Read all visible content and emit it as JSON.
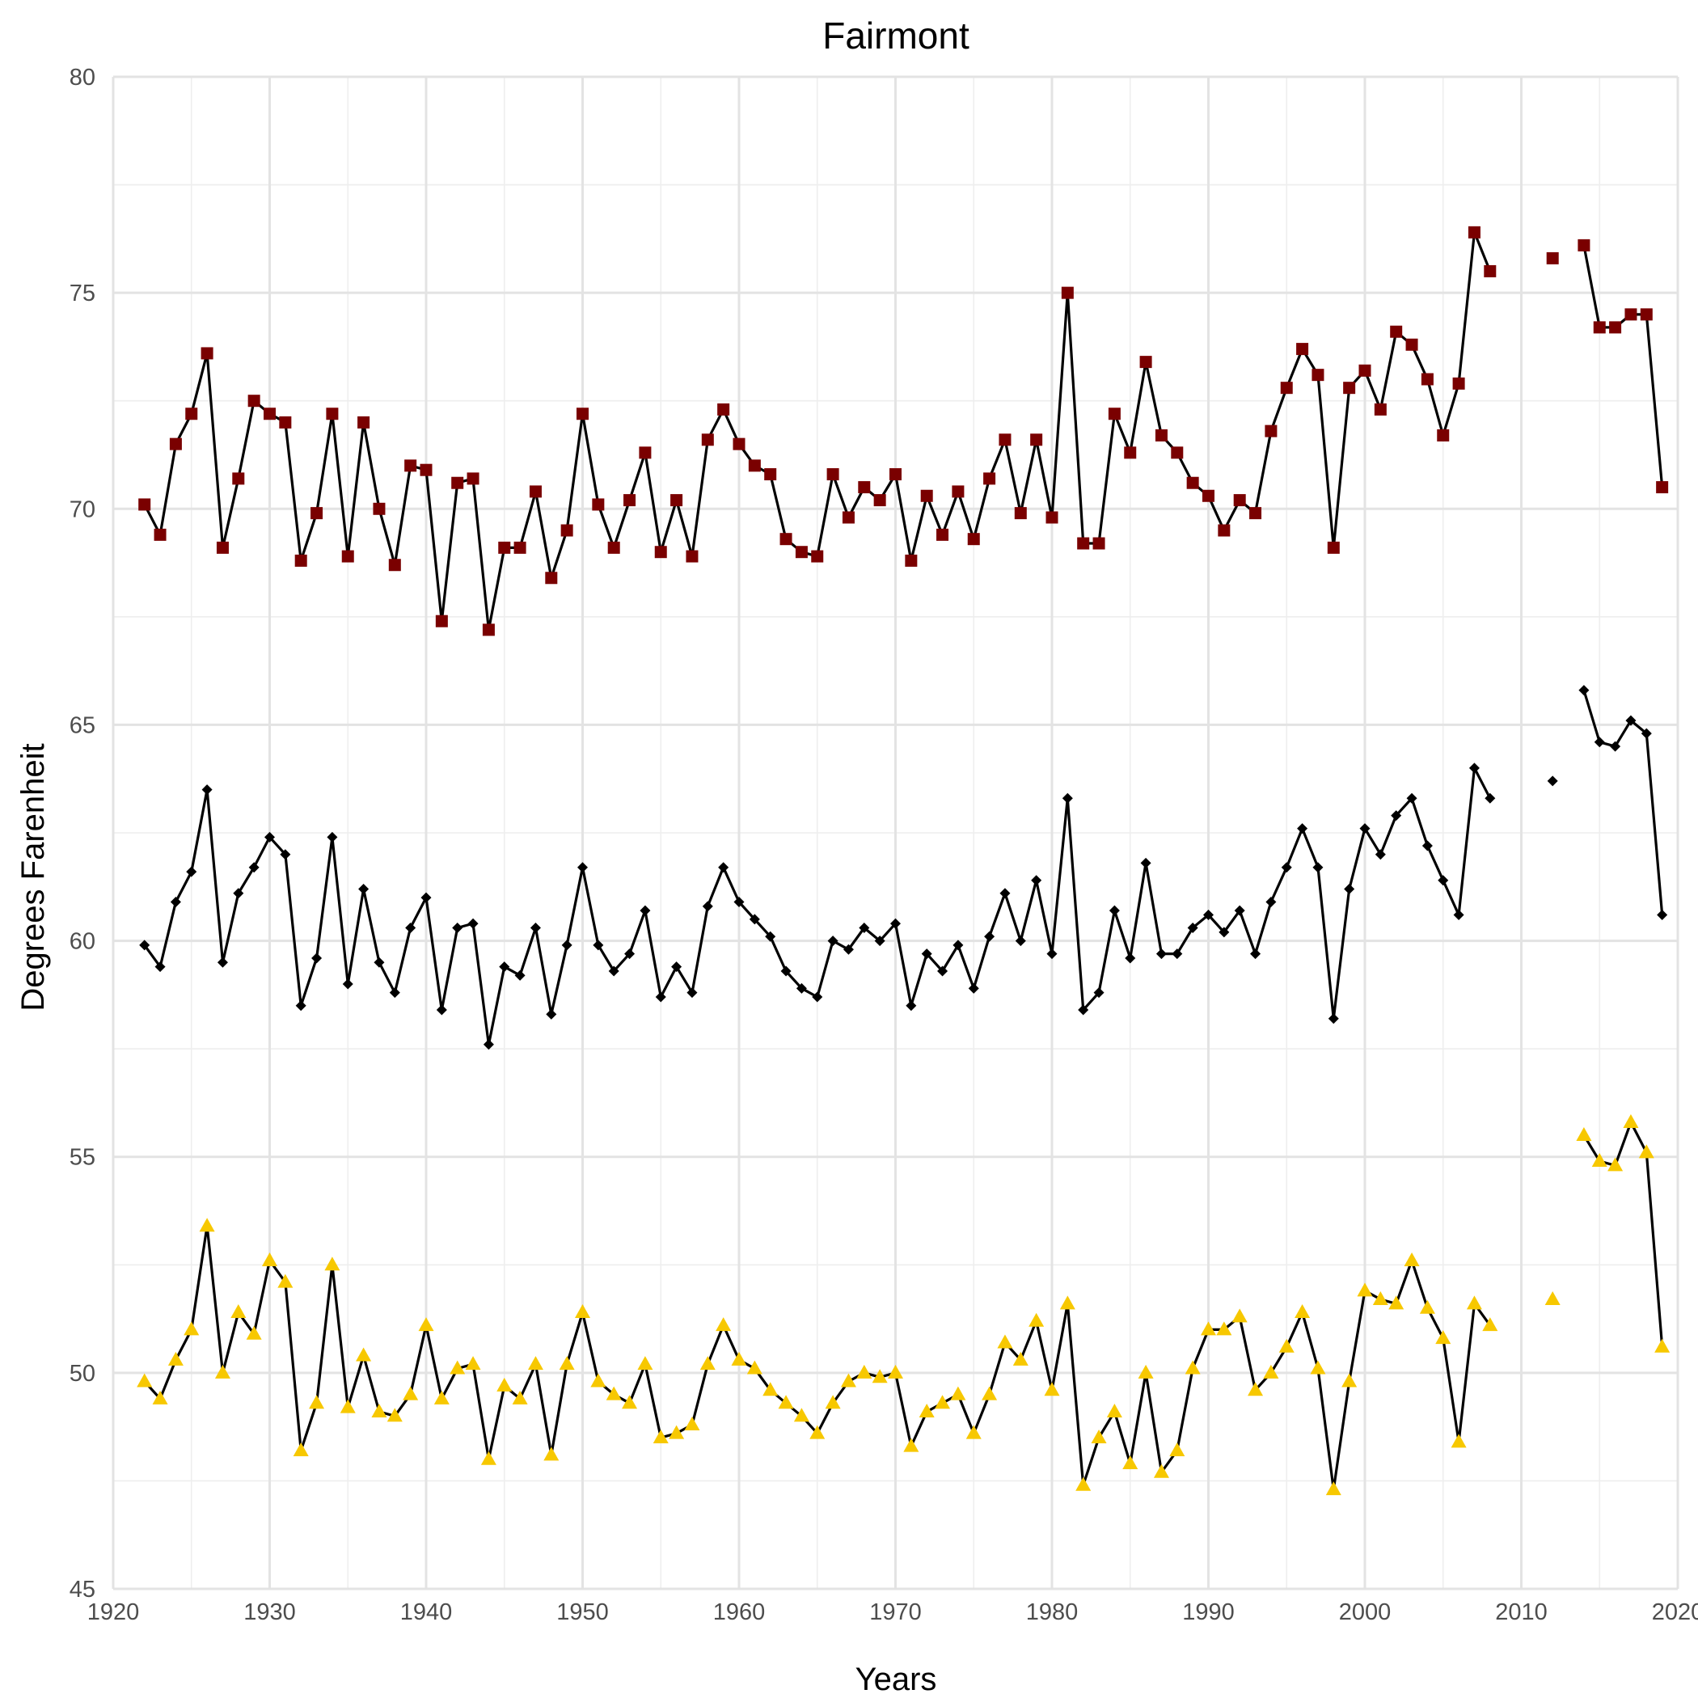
{
  "chart_data": {
    "type": "line",
    "title": "Fairmont",
    "xlabel": "Years",
    "ylabel": "Degrees Farenheit",
    "xlim": [
      1920,
      2020
    ],
    "ylim": [
      45,
      80
    ],
    "x_ticks": [
      1920,
      1930,
      1940,
      1950,
      1960,
      1970,
      1980,
      1990,
      2000,
      2010,
      2020
    ],
    "y_ticks": [
      45,
      50,
      55,
      60,
      65,
      70,
      75,
      80
    ],
    "grid": true,
    "legend": "none",
    "series": [
      {
        "marker": "square",
        "color": "#7a0000",
        "points": [
          [
            1922,
            70.1
          ],
          [
            1923,
            69.4
          ],
          [
            1924,
            71.5
          ],
          [
            1925,
            72.2
          ],
          [
            1926,
            73.6
          ],
          [
            1927,
            69.1
          ],
          [
            1928,
            70.7
          ],
          [
            1929,
            72.5
          ],
          [
            1930,
            72.2
          ],
          [
            1931,
            72.0
          ],
          [
            1932,
            68.8
          ],
          [
            1933,
            69.9
          ],
          [
            1934,
            72.2
          ],
          [
            1935,
            68.9
          ],
          [
            1936,
            72.0
          ],
          [
            1937,
            70.0
          ],
          [
            1938,
            68.7
          ],
          [
            1939,
            71.0
          ],
          [
            1940,
            70.9
          ],
          [
            1941,
            67.4
          ],
          [
            1942,
            70.6
          ],
          [
            1943,
            70.7
          ],
          [
            1944,
            67.2
          ],
          [
            1945,
            69.1
          ],
          [
            1946,
            69.1
          ],
          [
            1947,
            70.4
          ],
          [
            1948,
            68.4
          ],
          [
            1949,
            69.5
          ],
          [
            1950,
            72.2
          ],
          [
            1951,
            70.1
          ],
          [
            1952,
            69.1
          ],
          [
            1953,
            70.2
          ],
          [
            1954,
            71.3
          ],
          [
            1955,
            69.0
          ],
          [
            1956,
            70.2
          ],
          [
            1957,
            68.9
          ],
          [
            1958,
            71.6
          ],
          [
            1959,
            72.3
          ],
          [
            1960,
            71.5
          ],
          [
            1961,
            71.0
          ],
          [
            1962,
            70.8
          ],
          [
            1963,
            69.3
          ],
          [
            1964,
            69.0
          ],
          [
            1965,
            68.9
          ],
          [
            1966,
            70.8
          ],
          [
            1967,
            69.8
          ],
          [
            1968,
            70.5
          ],
          [
            1969,
            70.2
          ],
          [
            1970,
            70.8
          ],
          [
            1971,
            68.8
          ],
          [
            1972,
            70.3
          ],
          [
            1973,
            69.4
          ],
          [
            1974,
            70.4
          ],
          [
            1975,
            69.3
          ],
          [
            1976,
            70.7
          ],
          [
            1977,
            71.6
          ],
          [
            1978,
            69.9
          ],
          [
            1979,
            71.6
          ],
          [
            1980,
            69.8
          ],
          [
            1981,
            75.0
          ],
          [
            1982,
            69.2
          ],
          [
            1983,
            69.2
          ],
          [
            1984,
            72.2
          ],
          [
            1985,
            71.3
          ],
          [
            1986,
            73.4
          ],
          [
            1987,
            71.7
          ],
          [
            1988,
            71.3
          ],
          [
            1989,
            70.6
          ],
          [
            1990,
            70.3
          ],
          [
            1991,
            69.5
          ],
          [
            1992,
            70.2
          ],
          [
            1993,
            69.9
          ],
          [
            1994,
            71.8
          ],
          [
            1995,
            72.8
          ],
          [
            1996,
            73.7
          ],
          [
            1997,
            73.1
          ],
          [
            1998,
            69.1
          ],
          [
            1999,
            72.8
          ],
          [
            2000,
            73.2
          ],
          [
            2001,
            72.3
          ],
          [
            2002,
            74.1
          ],
          [
            2003,
            73.8
          ],
          [
            2004,
            73.0
          ],
          [
            2005,
            71.7
          ],
          [
            2006,
            72.9
          ],
          [
            2007,
            76.4
          ],
          [
            2008,
            75.5
          ],
          [
            2009,
            null
          ],
          [
            2010,
            null
          ],
          [
            2011,
            null
          ],
          [
            2012,
            75.8
          ],
          [
            2013,
            null
          ],
          [
            2014,
            76.1
          ],
          [
            2015,
            74.2
          ],
          [
            2016,
            74.2
          ],
          [
            2017,
            74.5
          ],
          [
            2018,
            74.5
          ],
          [
            2019,
            70.5
          ]
        ]
      },
      {
        "marker": "diamond",
        "color": "#000000",
        "points": [
          [
            1922,
            59.9
          ],
          [
            1923,
            59.4
          ],
          [
            1924,
            60.9
          ],
          [
            1925,
            61.6
          ],
          [
            1926,
            63.5
          ],
          [
            1927,
            59.5
          ],
          [
            1928,
            61.1
          ],
          [
            1929,
            61.7
          ],
          [
            1930,
            62.4
          ],
          [
            1931,
            62.0
          ],
          [
            1932,
            58.5
          ],
          [
            1933,
            59.6
          ],
          [
            1934,
            62.4
          ],
          [
            1935,
            59.0
          ],
          [
            1936,
            61.2
          ],
          [
            1937,
            59.5
          ],
          [
            1938,
            58.8
          ],
          [
            1939,
            60.3
          ],
          [
            1940,
            61.0
          ],
          [
            1941,
            58.4
          ],
          [
            1942,
            60.3
          ],
          [
            1943,
            60.4
          ],
          [
            1944,
            57.6
          ],
          [
            1945,
            59.4
          ],
          [
            1946,
            59.2
          ],
          [
            1947,
            60.3
          ],
          [
            1948,
            58.3
          ],
          [
            1949,
            59.9
          ],
          [
            1950,
            61.7
          ],
          [
            1951,
            59.9
          ],
          [
            1952,
            59.3
          ],
          [
            1953,
            59.7
          ],
          [
            1954,
            60.7
          ],
          [
            1955,
            58.7
          ],
          [
            1956,
            59.4
          ],
          [
            1957,
            58.8
          ],
          [
            1958,
            60.8
          ],
          [
            1959,
            61.7
          ],
          [
            1960,
            60.9
          ],
          [
            1961,
            60.5
          ],
          [
            1962,
            60.1
          ],
          [
            1963,
            59.3
          ],
          [
            1964,
            58.9
          ],
          [
            1965,
            58.7
          ],
          [
            1966,
            60.0
          ],
          [
            1967,
            59.8
          ],
          [
            1968,
            60.3
          ],
          [
            1969,
            60.0
          ],
          [
            1970,
            60.4
          ],
          [
            1971,
            58.5
          ],
          [
            1972,
            59.7
          ],
          [
            1973,
            59.3
          ],
          [
            1974,
            59.9
          ],
          [
            1975,
            58.9
          ],
          [
            1976,
            60.1
          ],
          [
            1977,
            61.1
          ],
          [
            1978,
            60.0
          ],
          [
            1979,
            61.4
          ],
          [
            1980,
            59.7
          ],
          [
            1981,
            63.3
          ],
          [
            1982,
            58.4
          ],
          [
            1983,
            58.8
          ],
          [
            1984,
            60.7
          ],
          [
            1985,
            59.6
          ],
          [
            1986,
            61.8
          ],
          [
            1987,
            59.7
          ],
          [
            1988,
            59.7
          ],
          [
            1989,
            60.3
          ],
          [
            1990,
            60.6
          ],
          [
            1991,
            60.2
          ],
          [
            1992,
            60.7
          ],
          [
            1993,
            59.7
          ],
          [
            1994,
            60.9
          ],
          [
            1995,
            61.7
          ],
          [
            1996,
            62.6
          ],
          [
            1997,
            61.7
          ],
          [
            1998,
            58.2
          ],
          [
            1999,
            61.2
          ],
          [
            2000,
            62.6
          ],
          [
            2001,
            62.0
          ],
          [
            2002,
            62.9
          ],
          [
            2003,
            63.3
          ],
          [
            2004,
            62.2
          ],
          [
            2005,
            61.4
          ],
          [
            2006,
            60.6
          ],
          [
            2007,
            64.0
          ],
          [
            2008,
            63.3
          ],
          [
            2009,
            null
          ],
          [
            2010,
            null
          ],
          [
            2011,
            null
          ],
          [
            2012,
            63.7
          ],
          [
            2013,
            null
          ],
          [
            2014,
            65.8
          ],
          [
            2015,
            64.6
          ],
          [
            2016,
            64.5
          ],
          [
            2017,
            65.1
          ],
          [
            2018,
            64.8
          ],
          [
            2019,
            60.6
          ]
        ]
      },
      {
        "marker": "triangle",
        "color": "#f7c800",
        "points": [
          [
            1922,
            49.8
          ],
          [
            1923,
            49.4
          ],
          [
            1924,
            50.3
          ],
          [
            1925,
            51.0
          ],
          [
            1926,
            53.4
          ],
          [
            1927,
            50.0
          ],
          [
            1928,
            51.4
          ],
          [
            1929,
            50.9
          ],
          [
            1930,
            52.6
          ],
          [
            1931,
            52.1
          ],
          [
            1932,
            48.2
          ],
          [
            1933,
            49.3
          ],
          [
            1934,
            52.5
          ],
          [
            1935,
            49.2
          ],
          [
            1936,
            50.4
          ],
          [
            1937,
            49.1
          ],
          [
            1938,
            49.0
          ],
          [
            1939,
            49.5
          ],
          [
            1940,
            51.1
          ],
          [
            1941,
            49.4
          ],
          [
            1942,
            50.1
          ],
          [
            1943,
            50.2
          ],
          [
            1944,
            48.0
          ],
          [
            1945,
            49.7
          ],
          [
            1946,
            49.4
          ],
          [
            1947,
            50.2
          ],
          [
            1948,
            48.1
          ],
          [
            1949,
            50.2
          ],
          [
            1950,
            51.4
          ],
          [
            1951,
            49.8
          ],
          [
            1952,
            49.5
          ],
          [
            1953,
            49.3
          ],
          [
            1954,
            50.2
          ],
          [
            1955,
            48.5
          ],
          [
            1956,
            48.6
          ],
          [
            1957,
            48.8
          ],
          [
            1958,
            50.2
          ],
          [
            1959,
            51.1
          ],
          [
            1960,
            50.3
          ],
          [
            1961,
            50.1
          ],
          [
            1962,
            49.6
          ],
          [
            1963,
            49.3
          ],
          [
            1964,
            49.0
          ],
          [
            1965,
            48.6
          ],
          [
            1966,
            49.3
          ],
          [
            1967,
            49.8
          ],
          [
            1968,
            50.0
          ],
          [
            1969,
            49.9
          ],
          [
            1970,
            50.0
          ],
          [
            1971,
            48.3
          ],
          [
            1972,
            49.1
          ],
          [
            1973,
            49.3
          ],
          [
            1974,
            49.5
          ],
          [
            1975,
            48.6
          ],
          [
            1976,
            49.5
          ],
          [
            1977,
            50.7
          ],
          [
            1978,
            50.3
          ],
          [
            1979,
            51.2
          ],
          [
            1980,
            49.6
          ],
          [
            1981,
            51.6
          ],
          [
            1982,
            47.4
          ],
          [
            1983,
            48.5
          ],
          [
            1984,
            49.1
          ],
          [
            1985,
            47.9
          ],
          [
            1986,
            50.0
          ],
          [
            1987,
            47.7
          ],
          [
            1988,
            48.2
          ],
          [
            1989,
            50.1
          ],
          [
            1990,
            51.0
          ],
          [
            1991,
            51.0
          ],
          [
            1992,
            51.3
          ],
          [
            1993,
            49.6
          ],
          [
            1994,
            50.0
          ],
          [
            1995,
            50.6
          ],
          [
            1996,
            51.4
          ],
          [
            1997,
            50.1
          ],
          [
            1998,
            47.3
          ],
          [
            1999,
            49.8
          ],
          [
            2000,
            51.9
          ],
          [
            2001,
            51.7
          ],
          [
            2002,
            51.6
          ],
          [
            2003,
            52.6
          ],
          [
            2004,
            51.5
          ],
          [
            2005,
            50.8
          ],
          [
            2006,
            48.4
          ],
          [
            2007,
            51.6
          ],
          [
            2008,
            51.1
          ],
          [
            2009,
            null
          ],
          [
            2010,
            null
          ],
          [
            2011,
            null
          ],
          [
            2012,
            51.7
          ],
          [
            2013,
            null
          ],
          [
            2014,
            55.5
          ],
          [
            2015,
            54.9
          ],
          [
            2016,
            54.8
          ],
          [
            2017,
            55.8
          ],
          [
            2018,
            55.1
          ],
          [
            2019,
            50.6
          ]
        ]
      }
    ]
  }
}
